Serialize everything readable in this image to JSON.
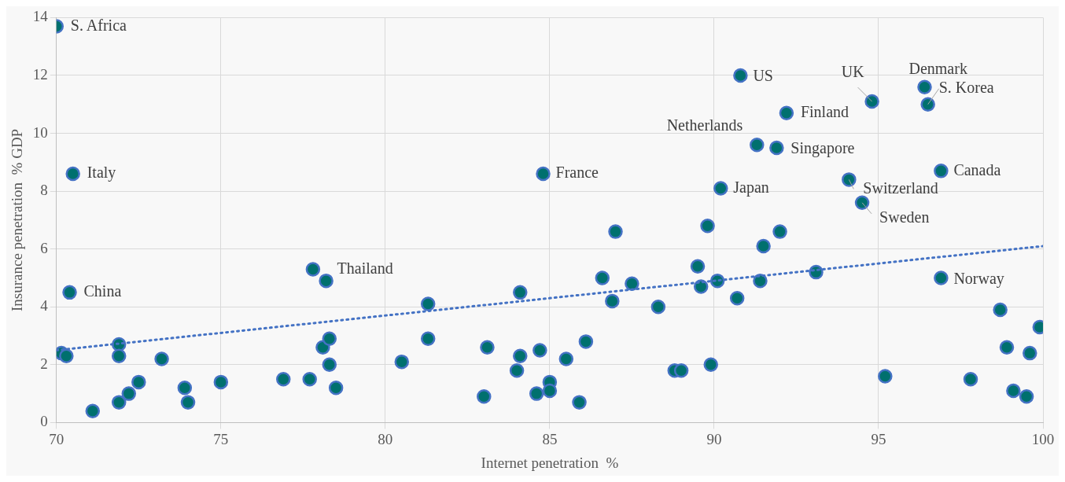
{
  "chart_data": {
    "type": "scatter",
    "xlabel": "Internet penetration  %",
    "ylabel": "Insurance penetration  % GDP",
    "xlim": [
      70,
      100
    ],
    "xticks": [
      70,
      75,
      80,
      85,
      90,
      95,
      100
    ],
    "ylim": [
      0,
      14
    ],
    "yticks": [
      0,
      2,
      4,
      6,
      8,
      10,
      12,
      14
    ],
    "grid": true,
    "legend": false,
    "series": [
      {
        "type": "scatter",
        "color": "#00706e",
        "marker": "circle",
        "x": [
          70,
          70.5,
          70.4,
          70.15,
          70.3,
          71.9,
          71.9,
          73.2,
          71.1,
          71.9,
          72.2,
          72.5,
          73.9,
          74,
          75,
          76.9,
          77.7,
          77.8,
          78.2,
          78.1,
          78.3,
          78.3,
          78.5,
          80.5,
          81.3,
          81.3,
          83.1,
          83,
          84.1,
          84.1,
          84,
          84.7,
          84.6,
          85,
          85,
          84.8,
          85.5,
          86.1,
          85.9,
          86.6,
          86.9,
          87,
          87.5,
          88.3,
          88.8,
          89,
          89.5,
          89.6,
          89.8,
          89.9,
          90.1,
          90.7,
          90.2,
          90.8,
          92.2,
          91.3,
          91.9,
          91.5,
          92,
          91.4,
          93.1,
          94.8,
          94.1,
          94.5,
          96.4,
          96.5,
          96.9,
          96.9,
          95.2,
          97.8,
          98.7,
          99.9,
          98.9,
          99.6,
          99.1,
          99.5
        ],
        "values": [
          13.7,
          8.6,
          4.5,
          2.4,
          2.3,
          2.7,
          2.3,
          2.2,
          0.4,
          0.7,
          1,
          1.4,
          1.2,
          0.7,
          1.4,
          1.5,
          1.5,
          5.3,
          4.9,
          2.6,
          2.9,
          2,
          1.2,
          2.1,
          4.1,
          2.9,
          2.6,
          0.9,
          4.5,
          2.3,
          1.8,
          2.5,
          1,
          1.4,
          1.1,
          8.6,
          2.2,
          2.8,
          0.7,
          5,
          4.2,
          6.6,
          4.8,
          4,
          1.8,
          1.8,
          5.4,
          4.7,
          6.8,
          2,
          4.9,
          4.3,
          8.1,
          12,
          10.7,
          9.6,
          9.5,
          6.1,
          6.6,
          4.9,
          5.2,
          11.1,
          8.4,
          7.6,
          11.6,
          11,
          8.7,
          5,
          1.6,
          1.5,
          3.9,
          3.3,
          2.6,
          2.4,
          1.1,
          0.9
        ]
      },
      {
        "type": "line",
        "color": "#4472c4",
        "line_style": "dotted",
        "marker": "none",
        "x": [
          70,
          100
        ],
        "values": [
          2.5,
          6.1
        ]
      }
    ],
    "annotations": [
      {
        "text": "S. Africa",
        "x": 70,
        "y": 13.7
      },
      {
        "text": "Italy",
        "x": 70.5,
        "y": 8.6
      },
      {
        "text": "China",
        "x": 70.4,
        "y": 4.5
      },
      {
        "text": "Thailand",
        "x": 78.2,
        "y": 4.9
      },
      {
        "text": "France",
        "x": 84.8,
        "y": 8.6
      },
      {
        "text": "Japan",
        "x": 90.2,
        "y": 8.1
      },
      {
        "text": "US",
        "x": 90.8,
        "y": 12
      },
      {
        "text": "Finland",
        "x": 92.2,
        "y": 10.7
      },
      {
        "text": "Netherlands",
        "x": 91.3,
        "y": 9.6
      },
      {
        "text": "Singapore",
        "x": 91.9,
        "y": 9.5
      },
      {
        "text": "UK",
        "x": 94.8,
        "y": 11.1
      },
      {
        "text": "Switzerland",
        "x": 94.1,
        "y": 8.4
      },
      {
        "text": "Sweden",
        "x": 94.5,
        "y": 7.6
      },
      {
        "text": "Denmark",
        "x": 96.4,
        "y": 11.6
      },
      {
        "text": "S. Korea",
        "x": 96.5,
        "y": 11
      },
      {
        "text": "Canada",
        "x": 96.9,
        "y": 8.7
      },
      {
        "text": "Norway",
        "x": 96.9,
        "y": 5
      }
    ]
  }
}
